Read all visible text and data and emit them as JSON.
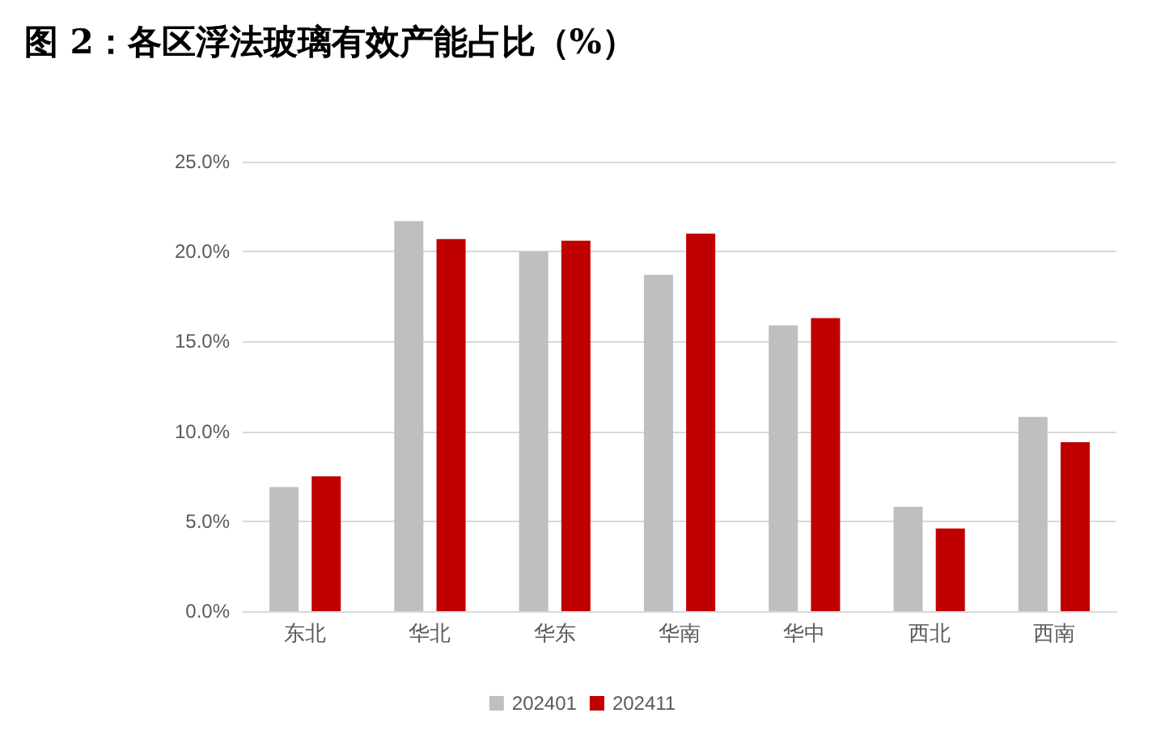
{
  "chart_data": {
    "type": "bar",
    "title": "图 2：各区浮法玻璃有效产能占比（%）",
    "categories": [
      "东北",
      "华北",
      "华东",
      "华南",
      "华中",
      "西北",
      "西南"
    ],
    "series": [
      {
        "name": "202401",
        "color": "#bfbfbf",
        "values": [
          6.9,
          21.7,
          20.0,
          18.7,
          15.9,
          5.8,
          10.8
        ]
      },
      {
        "name": "202411",
        "color": "#c00000",
        "values": [
          7.5,
          20.7,
          20.6,
          21.0,
          16.3,
          4.6,
          9.4
        ]
      }
    ],
    "ylim": [
      0,
      25
    ],
    "yticks": [
      {
        "value": 0,
        "label": "0.0%"
      },
      {
        "value": 5,
        "label": "5.0%"
      },
      {
        "value": 10,
        "label": "10.0%"
      },
      {
        "value": 15,
        "label": "15.0%"
      },
      {
        "value": 20,
        "label": "20.0%"
      },
      {
        "value": 25,
        "label": "25.0%"
      }
    ],
    "grid": "y",
    "legend": "bottom"
  }
}
